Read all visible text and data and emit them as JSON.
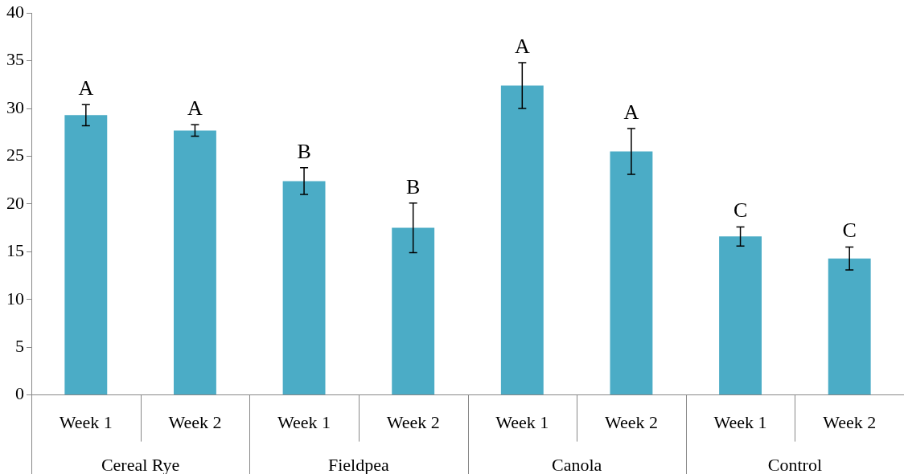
{
  "chart_data": {
    "type": "bar",
    "categories": [
      "Week 1",
      "Week 2",
      "Week 1",
      "Week 2",
      "Week 1",
      "Week 2",
      "Week 1",
      "Week 2"
    ],
    "values": [
      29.3,
      27.7,
      22.4,
      17.5,
      32.4,
      25.5,
      16.6,
      14.3
    ],
    "errors": [
      1.1,
      0.6,
      1.4,
      2.6,
      2.4,
      2.4,
      1.0,
      1.2
    ],
    "value_labels": [
      "A",
      "A",
      "B",
      "B",
      "A",
      "A",
      "C",
      "C"
    ],
    "color": "#4bacc6",
    "ylim": [
      0,
      40
    ],
    "yticks": [
      0,
      5,
      10,
      15,
      20,
      25,
      30,
      35,
      40
    ],
    "grid": false,
    "legend": false,
    "annotations": [
      "Cereal Rye",
      "Fieldpea",
      "Canola",
      "Control"
    ]
  }
}
